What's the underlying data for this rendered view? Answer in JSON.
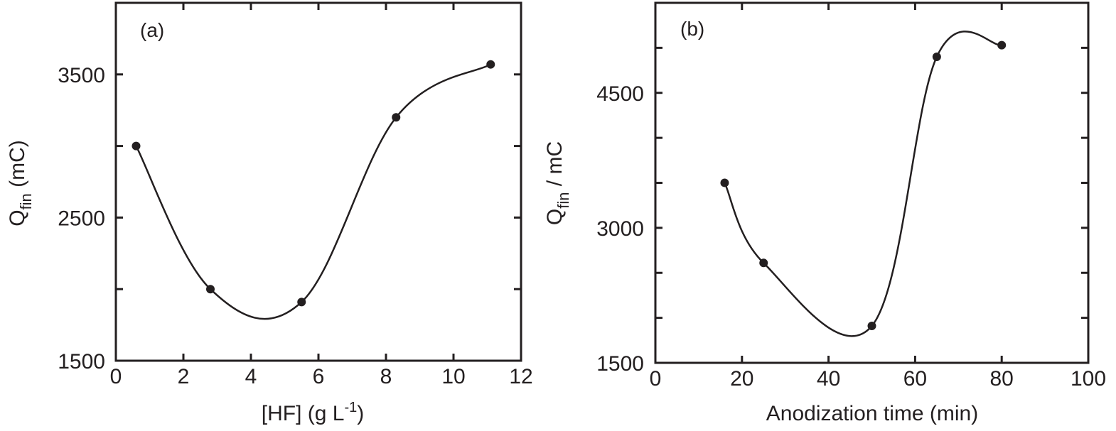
{
  "chart_data": [
    {
      "type": "line",
      "panel_label": "(a)",
      "title": "",
      "xlabel": "[HF]  (g L-1)",
      "xlabel_main": "[HF]  (g L",
      "xlabel_sup": "-1",
      "xlabel_end": ")",
      "ylabel": "Qfin (mC)",
      "ylabel_main": "Q",
      "ylabel_sub": "fin",
      "ylabel_end": " (mC)",
      "xlim": [
        0,
        12
      ],
      "ylim": [
        1500,
        4000
      ],
      "xticks": [
        0,
        2,
        4,
        6,
        8,
        10,
        12
      ],
      "xtick_labels": [
        "0",
        "2",
        "4",
        "6",
        "8",
        "10",
        "12"
      ],
      "yticks_labeled": [
        1500,
        2500,
        3500
      ],
      "ytick_labels": [
        "1500",
        "2500",
        "3500"
      ],
      "yticks_minor": [
        2000,
        3000
      ],
      "grid": false,
      "legend": null,
      "series": [
        {
          "name": "Qfin",
          "x": [
            0.6,
            2.8,
            5.5,
            8.3,
            11.1
          ],
          "y": [
            3000,
            2000,
            1910,
            3200,
            3570
          ]
        }
      ]
    },
    {
      "type": "line",
      "panel_label": "(b)",
      "title": "",
      "xlabel": "Anodization time (min)",
      "ylabel": "Qfin / mC",
      "ylabel_main": "Q",
      "ylabel_sub": "fin",
      "ylabel_end": "  / mC",
      "xlim": [
        0,
        100
      ],
      "ylim": [
        1500,
        5500
      ],
      "xticks": [
        0,
        20,
        40,
        60,
        80,
        100
      ],
      "xtick_labels": [
        "0",
        "20",
        "40",
        "60",
        "80",
        "100"
      ],
      "yticks_labeled": [
        1500,
        3000,
        4500
      ],
      "ytick_labels": [
        "1500",
        "3000",
        "4500"
      ],
      "yticks_minor": [
        2000,
        2500,
        3500,
        4000,
        5000
      ],
      "grid": false,
      "legend": null,
      "series": [
        {
          "name": "Qfin",
          "x": [
            16,
            25,
            50,
            65,
            80
          ],
          "y": [
            3500,
            2610,
            1910,
            4900,
            5030
          ]
        }
      ]
    }
  ]
}
